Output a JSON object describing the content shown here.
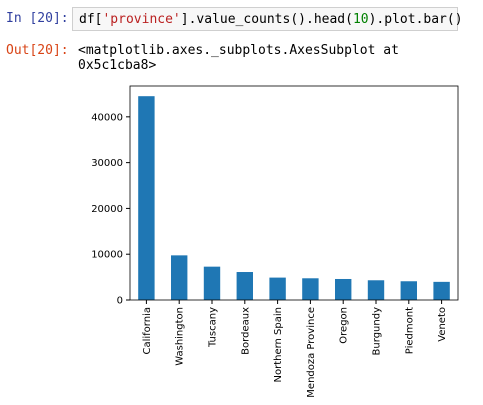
{
  "cell": {
    "in_prompt": "In [20]:",
    "code_parts": [
      "df[",
      "'province'",
      "].value_counts().head(",
      "10",
      ").plot.bar()"
    ],
    "out_prompt": "Out[20]:",
    "output": "<matplotlib.axes._subplots.AxesSubplot at 0x5c1cba8>"
  },
  "chart_data": {
    "type": "bar",
    "categories": [
      "California",
      "Washington",
      "Tuscany",
      "Bordeaux",
      "Northern Spain",
      "Mendoza Province",
      "Oregon",
      "Burgundy",
      "Piedmont",
      "Veneto"
    ],
    "values": [
      44508,
      9750,
      7281,
      6111,
      4892,
      4742,
      4589,
      4308,
      4093,
      3962
    ],
    "color": "#1f77b4",
    "ylim": [
      0,
      46733
    ],
    "yticks": [
      0,
      10000,
      20000,
      30000,
      40000
    ]
  }
}
